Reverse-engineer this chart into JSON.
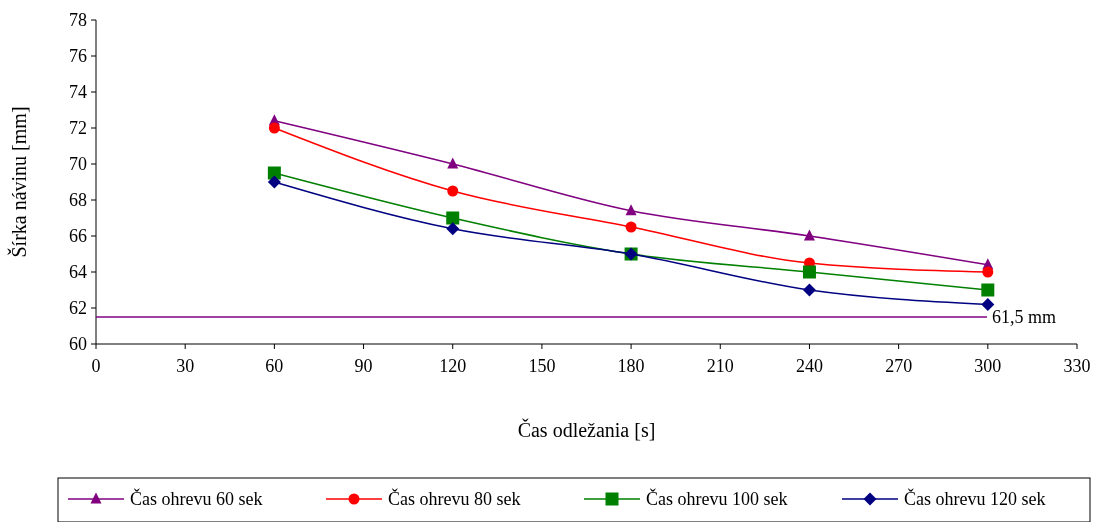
{
  "chart_data": {
    "type": "line",
    "xlabel": "Čas odležania [s]",
    "ylabel": "Šírka návinu [mm]",
    "xlim": [
      0,
      330
    ],
    "xticks": [
      0,
      30,
      60,
      90,
      120,
      150,
      180,
      210,
      240,
      270,
      300,
      330
    ],
    "ylim": [
      60,
      78
    ],
    "yticks": [
      60,
      62,
      64,
      66,
      68,
      70,
      72,
      74,
      76,
      78
    ],
    "x": [
      60,
      120,
      180,
      240,
      300
    ],
    "series": [
      {
        "name": "Čas ohrevu 60 sek",
        "color": "#800080",
        "marker": "triangle",
        "values": [
          72.4,
          70,
          67.4,
          66,
          64.4
        ]
      },
      {
        "name": "Čas ohrevu 80 sek",
        "color": "#ff0000",
        "marker": "circle",
        "values": [
          72,
          68.5,
          66.5,
          64.5,
          64
        ]
      },
      {
        "name": "Čas ohrevu 100 sek",
        "color": "#008000",
        "marker": "square",
        "values": [
          69.5,
          67,
          65,
          64,
          63
        ]
      },
      {
        "name": "Čas ohrevu 120 sek",
        "color": "#000080",
        "marker": "diamond",
        "values": [
          69,
          66.4,
          65,
          63,
          62.2
        ]
      }
    ],
    "ref_lines": [
      {
        "axis": "y",
        "value": 61.5,
        "label": "61,5 mm",
        "color": "#800080"
      }
    ],
    "grid": false,
    "legend": "bottom"
  }
}
